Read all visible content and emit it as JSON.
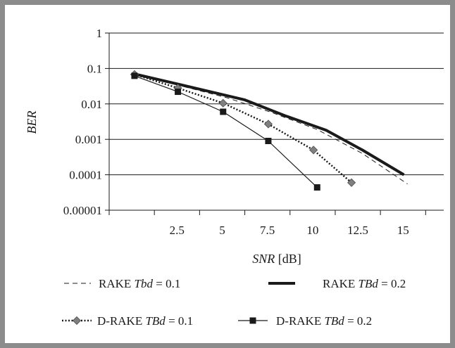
{
  "chart_data": {
    "type": "line",
    "title": "",
    "xlabel": {
      "italic": "SNR",
      "unit": " [dB]"
    },
    "ylabel": "BER",
    "y_scale": "log",
    "ylim": [
      1e-05,
      1
    ],
    "xlim": [
      0,
      18.5
    ],
    "xticks": [
      "2.5",
      "5",
      "7.5",
      "10",
      "12.5",
      "15"
    ],
    "yticks": [
      "1",
      "0.1",
      "0.01",
      "0.001",
      "0.0001",
      "0.00001"
    ],
    "grid": "horizontal",
    "legend_position": "bottom",
    "series": [
      {
        "name": "RAKE Tbd = 0.1",
        "legend_prefix": "RAKE ",
        "legend_param": "Tbd",
        "legend_value": " = 0.1",
        "line": "dashed",
        "marker": "none",
        "color": "#1a1a1a",
        "x": [
          1.4,
          4,
          6.5,
          9,
          11.5,
          14,
          16.5
        ],
        "y": [
          0.068,
          0.032,
          0.015,
          0.0057,
          0.0019,
          0.0004,
          5.5e-05
        ]
      },
      {
        "name": "RAKE TBd = 0.2",
        "legend_prefix": "RAKE ",
        "legend_param": "TBd",
        "legend_value": " = 0.2",
        "line": "thick",
        "marker": "none",
        "color": "#1a1a1a",
        "x": [
          1.4,
          4.5,
          7.5,
          9.8,
          12,
          14,
          16.3
        ],
        "y": [
          0.07,
          0.03,
          0.013,
          0.0045,
          0.0018,
          0.0005,
          0.0001
        ]
      },
      {
        "name": "D-RAKE TBd = 0.1",
        "legend_prefix": "D-RAKE ",
        "legend_param": "TBd",
        "legend_value": " = 0.1",
        "line": "dotted",
        "marker": "diamond",
        "color": "#1a1a1a",
        "marker_color": "#7f7f7f",
        "x": [
          1.4,
          3.8,
          6.3,
          8.8,
          11.3,
          13.4
        ],
        "y": [
          0.068,
          0.028,
          0.0105,
          0.0027,
          0.0005,
          6e-05
        ]
      },
      {
        "name": "D-RAKE TBd = 0.2",
        "legend_prefix": "D-RAKE ",
        "legend_param": "TBd",
        "legend_value": " = 0.2",
        "line": "solid",
        "marker": "square",
        "color": "#1a1a1a",
        "marker_color": "#1a1a1a",
        "x": [
          1.4,
          3.8,
          6.3,
          8.8,
          11.5
        ],
        "y": [
          0.062,
          0.022,
          0.006,
          0.0009,
          4.4e-05
        ]
      }
    ]
  }
}
